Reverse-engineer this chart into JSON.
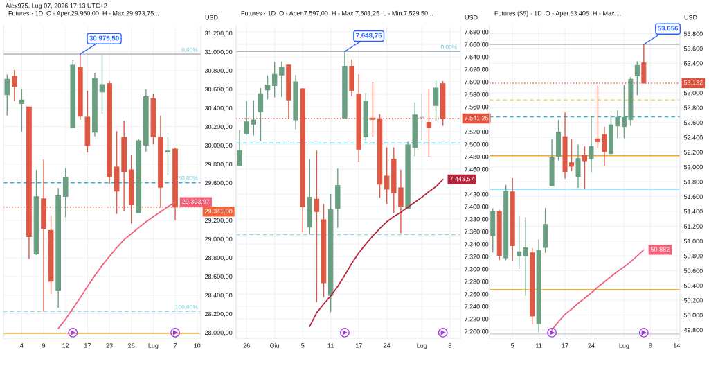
{
  "chart_data": [
    {
      "type": "candlestick",
      "title": "Futures · 1D  O - Aper.29.960,00  H - Max.29.973,75...",
      "ylabel": "USD",
      "categories": [
        null,
        null,
        "4",
        null,
        null,
        "9",
        null,
        null,
        "12",
        null,
        null,
        "17",
        null,
        null,
        "23",
        null,
        null,
        "26",
        null,
        null,
        "Lug",
        null,
        null,
        "7",
        null,
        null,
        "10"
      ],
      "ohlc": [
        [
          30541,
          30758,
          30319,
          30706
        ],
        [
          30738,
          30805,
          30474,
          30630
        ],
        [
          30447,
          30602,
          30146,
          30484
        ],
        [
          30410,
          30410,
          28785,
          29025
        ],
        [
          28839,
          29738,
          28827,
          29451
        ],
        [
          29429,
          29849,
          28225,
          29114
        ],
        [
          29092,
          29248,
          28413,
          28549
        ],
        [
          28448,
          29545,
          28264,
          29461
        ],
        [
          29454,
          29758,
          29231,
          29660
        ],
        [
          30188,
          30911,
          30185,
          30857
        ],
        [
          30832,
          30975.5,
          30272,
          30311
        ],
        [
          30301,
          30583,
          29924,
          29998
        ],
        [
          30141,
          30775,
          30096,
          30714
        ],
        [
          30570,
          30960,
          30336,
          30649
        ],
        [
          30659,
          30689,
          29590,
          29667
        ],
        [
          29768,
          30151,
          29268,
          29511
        ],
        [
          30086,
          30262,
          29300,
          29721
        ],
        [
          29738,
          29894,
          29166,
          29365
        ],
        [
          29280,
          30064,
          29280,
          30049
        ],
        [
          30003,
          30598,
          29933,
          30519
        ],
        [
          30499,
          30548,
          30010,
          30091
        ],
        [
          30086,
          30319,
          29335,
          29553
        ],
        [
          29928,
          30091,
          29684,
          29941
        ],
        [
          29960,
          29973.75,
          29200,
          29341
        ],
        null,
        null,
        null
      ],
      "colors": [
        "#6b9f82",
        "#de5843",
        "#6b9f82",
        "#de5843",
        "#6b9f82",
        "#de5843",
        "#de5843",
        "#6b9f82",
        "#6b9f82",
        "#6b9f82",
        "#de5843",
        "#de5843",
        "#6b9f82",
        "#6b9f82",
        "#de5843",
        "#de5843",
        "#de5843",
        "#de5843",
        "#6b9f82",
        "#6b9f82",
        "#de5843",
        "#de5843",
        "#6b9f82",
        "#de5843",
        null,
        null,
        null
      ],
      "series": [
        {
          "type": "line",
          "color": "#f2607a",
          "values": [
            null,
            null,
            null,
            null,
            null,
            null,
            null,
            28044,
            28142,
            28257,
            28372,
            28492,
            28609,
            28716,
            28814,
            28906,
            28992,
            29056,
            29120,
            29183,
            29237,
            29291,
            29345,
            29393.97,
            null,
            null,
            null
          ],
          "value_labels": [
            null,
            null,
            null,
            null,
            null,
            null,
            null,
            null,
            null,
            null,
            null,
            null,
            null,
            null,
            null,
            null,
            null,
            null,
            null,
            null,
            null,
            null,
            null,
            "29.393,97",
            null,
            null,
            null
          ]
        }
      ],
      "ylim": [
        27939,
        31272
      ],
      "yticks": [
        {
          "value": 28000,
          "label": "28.000,00"
        },
        {
          "value": 28200,
          "label": "28.200,00"
        },
        {
          "value": 28400,
          "label": "28.400,00"
        },
        {
          "value": 28600,
          "label": "28.600,00"
        },
        {
          "value": 28800,
          "label": "28.800,00"
        },
        {
          "value": 29000,
          "label": "29.000,00"
        },
        {
          "value": 29200,
          "label": "29.200,00"
        },
        {
          "value": 29600,
          "label": "29.600,00"
        },
        {
          "value": 29800,
          "label": "29.800,00"
        },
        {
          "value": 30000,
          "label": "30.000,00"
        },
        {
          "value": 30200,
          "label": "30.200,00"
        },
        {
          "value": 30400,
          "label": "30.400,00"
        },
        {
          "value": 30600,
          "label": "30.600,00"
        },
        {
          "value": 30800,
          "label": "30.800,00"
        },
        {
          "value": 31000,
          "label": "31.000,00"
        },
        {
          "value": 31200,
          "label": "31.200,00"
        }
      ],
      "grid": true,
      "ref_lines": [
        {
          "axis": "y",
          "value": 30975.5,
          "color": "#b2b5be",
          "line_style": "solid"
        },
        {
          "axis": "y",
          "value": 29600,
          "color": "#22b7cf",
          "line_style": "dashed"
        },
        {
          "axis": "y",
          "value": 28225,
          "color": "#8fd9e6",
          "line_style": "dashed"
        },
        {
          "axis": "y",
          "value": 27990,
          "color": "#f5b324",
          "line_style": "solid"
        },
        {
          "axis": "y",
          "value": 29341,
          "label": "29.341,00",
          "color": "#f0653c",
          "line_style": "dotted"
        }
      ],
      "annotations": [
        "Alex975, Lug 07, 2026 17:13 UTC+2",
        "0,00%",
        "50,00%",
        "100,00%",
        {
          "text": "30.975,50",
          "y": 30975.5
        }
      ]
    },
    {
      "type": "candlestick",
      "title": "Futures · 1D  O - Aper.7.597,00  H - Max.7.601,25  L - Min.7.529,50...",
      "ylabel": "USD",
      "categories": [
        null,
        "26",
        null,
        null,
        null,
        "Giu",
        null,
        null,
        null,
        "5",
        null,
        null,
        null,
        "11",
        null,
        null,
        null,
        "17",
        null,
        null,
        null,
        "24",
        null,
        null,
        null,
        null,
        "Lug",
        null,
        null,
        null,
        "8",
        null
      ],
      "ohlc": [
        [
          7466,
          7523,
          7466,
          7490
        ],
        [
          7517,
          7569,
          7515,
          7536
        ],
        [
          7532,
          7570,
          7514,
          7539
        ],
        [
          7552,
          7590,
          7505,
          7581
        ],
        [
          7587,
          7610,
          7572,
          7595
        ],
        [
          7594,
          7632,
          7575,
          7612
        ],
        [
          7611,
          7632,
          7576,
          7623
        ],
        [
          7627,
          7627,
          7541,
          7571
        ],
        [
          7539,
          7611,
          7524,
          7600
        ],
        [
          7589,
          7590,
          7359,
          7400
        ],
        [
          7367,
          7476,
          7355,
          7415
        ],
        [
          7412,
          7490,
          7247,
          7392
        ],
        [
          7379,
          7404,
          7255,
          7278
        ],
        [
          7258,
          7420,
          7231,
          7395
        ],
        [
          7397,
          7461,
          7366,
          7434
        ],
        [
          7542,
          7648.75,
          7542,
          7625
        ],
        [
          7625,
          7636,
          7577,
          7586
        ],
        [
          7580,
          7612,
          7472,
          7492
        ],
        [
          7512,
          7582,
          7503,
          7569
        ],
        [
          7542,
          7599,
          7512,
          7540
        ],
        [
          7540,
          7548,
          7414,
          7436
        ],
        [
          7449,
          7495,
          7404,
          7428
        ],
        [
          7476,
          7495,
          7390,
          7422
        ],
        [
          7430,
          7459,
          7357,
          7400
        ],
        [
          7397,
          7504,
          7397,
          7499
        ],
        [
          7495,
          7567,
          7481,
          7547
        ],
        [
          7543,
          7580,
          7506,
          7543
        ],
        [
          7535,
          7589,
          7479,
          7527
        ],
        [
          7562,
          7602,
          7538,
          7590
        ],
        [
          7597,
          7601.25,
          7529.5,
          7541.25
        ],
        null,
        null
      ],
      "colors": [
        "#6b9f82",
        "#6b9f82",
        "#6b9f82",
        "#6b9f82",
        "#6b9f82",
        "#6b9f82",
        "#6b9f82",
        "#de5843",
        "#6b9f82",
        "#de5843",
        "#6b9f82",
        "#de5843",
        "#de5843",
        "#6b9f82",
        "#6b9f82",
        "#6b9f82",
        "#de5843",
        "#de5843",
        "#6b9f82",
        "#de5843",
        "#de5843",
        "#de5843",
        "#de5843",
        "#de5843",
        "#6b9f82",
        "#6b9f82",
        "#a0a4ab",
        "#de5843",
        "#6b9f82",
        "#de5843",
        null,
        null
      ],
      "series": [
        {
          "type": "line",
          "color": "#b5263c",
          "values": [
            null,
            null,
            null,
            null,
            null,
            null,
            null,
            null,
            null,
            null,
            7208,
            7230,
            7244,
            7257,
            7272,
            7290,
            7309,
            7326,
            7340,
            7353,
            7365,
            7376,
            7384,
            7391,
            7399,
            7407,
            7415,
            7424,
            7432,
            7443.57,
            null,
            null
          ],
          "value_labels": [
            null,
            null,
            null,
            null,
            null,
            null,
            null,
            null,
            null,
            null,
            null,
            null,
            null,
            null,
            null,
            null,
            null,
            null,
            null,
            null,
            null,
            null,
            null,
            null,
            null,
            null,
            null,
            null,
            null,
            "7.443,57",
            null,
            null
          ]
        }
      ],
      "ylim": [
        7189,
        7689
      ],
      "yticks": [
        {
          "value": 7200,
          "label": "7.200,00"
        },
        {
          "value": 7220,
          "label": "7.220,00"
        },
        {
          "value": 7240,
          "label": "7.240,00"
        },
        {
          "value": 7260,
          "label": "7.260,00"
        },
        {
          "value": 7280,
          "label": "7.280,00"
        },
        {
          "value": 7300,
          "label": "7.300,00"
        },
        {
          "value": 7320,
          "label": "7.320,00"
        },
        {
          "value": 7340,
          "label": "7.340,00"
        },
        {
          "value": 7360,
          "label": "7.360,00"
        },
        {
          "value": 7380,
          "label": "7.380,00"
        },
        {
          "value": 7400,
          "label": "7.400,00"
        },
        {
          "value": 7420,
          "label": "7.420,00"
        },
        {
          "value": 7460,
          "label": "7.460,00"
        },
        {
          "value": 7480,
          "label": "7.480,00"
        },
        {
          "value": 7500,
          "label": "7.500,00"
        },
        {
          "value": 7520,
          "label": "7.520,00"
        },
        {
          "value": 7560,
          "label": "7.560,00"
        },
        {
          "value": 7580,
          "label": "7.580,00"
        },
        {
          "value": 7600,
          "label": "7.600,00"
        },
        {
          "value": 7620,
          "label": "7.620,00"
        },
        {
          "value": 7640,
          "label": "7.640,00"
        },
        {
          "value": 7660,
          "label": "7.660,00"
        },
        {
          "value": 7680,
          "label": "7.680,00"
        }
      ],
      "grid": true,
      "ref_lines": [
        {
          "axis": "y",
          "value": 7648.75,
          "color": "#b2b5be",
          "line_style": "solid"
        },
        {
          "axis": "y",
          "value": 7501.9,
          "color": "#22b7cf",
          "line_style": "dashed"
        },
        {
          "axis": "y",
          "value": 7355,
          "color": "#8fd9e6",
          "line_style": "dashed"
        },
        {
          "axis": "y",
          "value": 7541.25,
          "label": "7.541,25",
          "color": "#e5533f",
          "line_style": "dotted"
        }
      ],
      "annotations": [
        "0,00%",
        {
          "text": "7.648,75",
          "y": 7648.75
        }
      ]
    },
    {
      "type": "candlestick",
      "title": "Futures ($5) · 1D  O - Aper.53.405  H - Max....",
      "ylabel": "USD",
      "categories": [
        null,
        null,
        null,
        "5",
        null,
        null,
        null,
        "11",
        null,
        null,
        null,
        "17",
        null,
        null,
        null,
        "24",
        null,
        null,
        null,
        null,
        "Lug",
        null,
        null,
        null,
        "8",
        null,
        null,
        null,
        "14"
      ],
      "ohlc": [
        [
          51072,
          51442,
          50844,
          51399
        ],
        [
          51396,
          51421,
          50742,
          50804
        ],
        [
          50773,
          51757,
          50742,
          51670
        ],
        [
          51664,
          51850,
          50735,
          50938
        ],
        [
          50798,
          51333,
          50623,
          50854
        ],
        [
          50798,
          51321,
          50262,
          50907
        ],
        [
          50841,
          50907,
          49876,
          49988
        ],
        [
          49885,
          51022,
          49770,
          50875
        ],
        [
          50913,
          51445,
          50841,
          51224
        ],
        [
          51745,
          52379,
          51745,
          52126
        ],
        [
          52145,
          52635,
          52086,
          52470
        ],
        [
          52407,
          52735,
          51841,
          51939
        ],
        [
          52058,
          52376,
          51945,
          52008
        ],
        [
          51872,
          52304,
          51717,
          52114
        ],
        [
          52161,
          52279,
          51701,
          52083
        ],
        [
          52117,
          52679,
          51930,
          52276
        ],
        [
          52379,
          53100,
          52257,
          52342
        ],
        [
          52435,
          52545,
          52014,
          52208
        ],
        [
          52179,
          52701,
          52179,
          52566
        ],
        [
          52554,
          52763,
          52389,
          52669
        ],
        [
          52545,
          53106,
          52389,
          52669
        ],
        [
          52641,
          53218,
          52554,
          53184
        ],
        [
          53231,
          53427,
          52969,
          53371
        ],
        [
          53405,
          53656,
          53132,
          53132
        ],
        null,
        null,
        null,
        null,
        null
      ],
      "colors": [
        "#6b9f82",
        "#de5843",
        "#6b9f82",
        "#de5843",
        "#6b9f82",
        "#6b9f82",
        "#de5843",
        "#6b9f82",
        "#6b9f82",
        "#6b9f82",
        "#6b9f82",
        "#de5843",
        "#de5843",
        "#6b9f82",
        "#de5843",
        "#6b9f82",
        "#de5843",
        "#de5843",
        "#6b9f82",
        "#6b9f82",
        "#6b9f82",
        "#6b9f82",
        "#6b9f82",
        "#de5843",
        null,
        null,
        null,
        null,
        null
      ],
      "series": [
        {
          "type": "line",
          "color": "#f2607a",
          "values": [
            null,
            null,
            null,
            null,
            null,
            null,
            null,
            null,
            null,
            49800,
            49910,
            50010,
            50080,
            50160,
            50230,
            50300,
            50380,
            50450,
            50520,
            50590,
            50650,
            50720,
            50800,
            50882,
            null,
            null,
            null,
            null,
            null
          ],
          "value_labels": [
            null,
            null,
            null,
            null,
            null,
            null,
            null,
            null,
            null,
            null,
            null,
            null,
            null,
            null,
            null,
            null,
            null,
            null,
            null,
            null,
            null,
            null,
            null,
            "50.882",
            null,
            null,
            null,
            null,
            null
          ]
        }
      ],
      "ylim": [
        49687,
        53899
      ],
      "yticks": [
        {
          "value": 49800,
          "label": "49.800"
        },
        {
          "value": 50000,
          "label": "50.000"
        },
        {
          "value": 50200,
          "label": "50.200"
        },
        {
          "value": 50400,
          "label": "50.400"
        },
        {
          "value": 50600,
          "label": "50.600"
        },
        {
          "value": 50800,
          "label": "50.800"
        },
        {
          "value": 51000,
          "label": "51.000"
        },
        {
          "value": 51200,
          "label": "51.200"
        },
        {
          "value": 51400,
          "label": "51.400"
        },
        {
          "value": 51600,
          "label": "51.600"
        },
        {
          "value": 51800,
          "label": "51.800"
        },
        {
          "value": 52000,
          "label": "52.000"
        },
        {
          "value": 52200,
          "label": "52.200"
        },
        {
          "value": 52400,
          "label": "52.400"
        },
        {
          "value": 52600,
          "label": "52.600"
        },
        {
          "value": 52800,
          "label": "52.800"
        },
        {
          "value": 53000,
          "label": "53.000"
        },
        {
          "value": 53400,
          "label": "53.400"
        },
        {
          "value": 53600,
          "label": "53.600"
        },
        {
          "value": 53800,
          "label": "53.800"
        }
      ],
      "grid": true,
      "ref_lines": [
        {
          "axis": "y",
          "value": 53656,
          "color": "#b2b5be",
          "line_style": "solid"
        },
        {
          "axis": "y",
          "value": 52906,
          "color": "#f2c94c",
          "line_style": "dashed"
        },
        {
          "axis": "y",
          "value": 52676,
          "color": "#22b7cf",
          "line_style": "dashed"
        },
        {
          "axis": "y",
          "value": 52151,
          "color": "#f5a623",
          "line_style": "solid"
        },
        {
          "axis": "y",
          "value": 51701,
          "color": "#4fc3e8",
          "line_style": "solid"
        },
        {
          "axis": "y",
          "value": 50346,
          "color": "#f5b324",
          "line_style": "solid"
        },
        {
          "axis": "y",
          "value": 49745,
          "color": "#d1d4dc",
          "line_style": "solid"
        },
        {
          "axis": "y",
          "value": 53132,
          "label": "53.132",
          "color": "#e0503c",
          "line_style": "dotted"
        }
      ],
      "annotations": [
        {
          "text": "53.656",
          "y": 53656
        }
      ]
    }
  ]
}
